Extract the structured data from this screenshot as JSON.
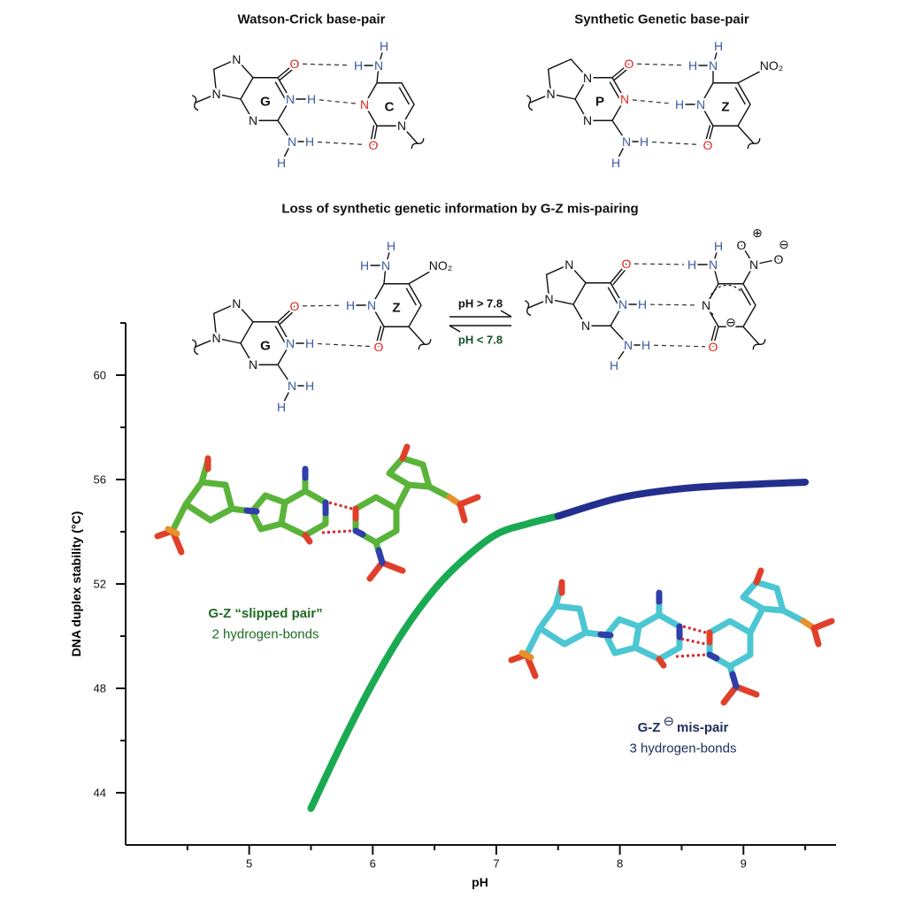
{
  "structures": [
    {
      "title": "Watson-Crick base-pair",
      "bases": [
        "G",
        "C"
      ],
      "atoms": [
        "N",
        "N",
        "O",
        "N",
        "H",
        "N",
        "N",
        "H",
        "H",
        "N",
        "N",
        "H",
        "H",
        "O",
        "N"
      ]
    },
    {
      "title": "Synthetic Genetic base-pair",
      "bases": [
        "P",
        "Z"
      ],
      "atoms": [
        "N",
        "N",
        "O",
        "N",
        "N",
        "N",
        "H",
        "H",
        "N",
        "H",
        "N",
        "H",
        "H",
        "O",
        "NO₂"
      ]
    },
    {
      "bases": [
        "G",
        "Z"
      ],
      "atoms": [
        "N",
        "N",
        "O",
        "N",
        "H",
        "N",
        "N",
        "H",
        "H",
        "N",
        "H",
        "N",
        "H",
        "H",
        "O",
        "NO₂"
      ]
    },
    {
      "atoms": [
        "N",
        "N",
        "O",
        "N",
        "H",
        "N",
        "N",
        "H",
        "H",
        "N",
        "N",
        "H",
        "H",
        "O",
        "N",
        "O",
        "O",
        "⊕",
        "⊖",
        "⊖"
      ]
    }
  ],
  "section_title": "Loss of synthetic genetic information by G-Z mis-pairing",
  "equilibrium": {
    "forward": "pH > 7.8",
    "reverse": "pH < 7.8"
  },
  "chart_data": {
    "type": "line",
    "x_label": "pH",
    "y_label": "DNA duplex stability (°C)",
    "xlim": [
      4,
      9.75
    ],
    "ylim": [
      42,
      62
    ],
    "xticks": [
      5,
      6,
      7,
      8,
      9
    ],
    "yticks": [
      44,
      48,
      52,
      56,
      60
    ],
    "xminor": [
      4.5,
      5.5,
      6.5,
      7.5,
      8.5,
      9.5
    ],
    "yminor": [
      46,
      50,
      54,
      58,
      62
    ],
    "series": [
      {
        "color": "#1aaa52",
        "x": [
          5.5,
          5.75,
          6,
          6.25,
          6.5,
          6.75,
          7,
          7.25,
          7.5
        ],
        "values": [
          43.4,
          45.9,
          48.2,
          50.2,
          51.8,
          53.0,
          53.9,
          54.3,
          54.6
        ]
      },
      {
        "color": "#232f8e",
        "x": [
          7.5,
          8,
          8.5,
          9,
          9.5
        ],
        "values": [
          54.6,
          55.3,
          55.65,
          55.8,
          55.9
        ]
      }
    ],
    "annotations": [
      {
        "text": [
          "G-Z “slipped pair”"
        ],
        "subtext": "2 hydrogen-bonds",
        "color": "#1f6b22"
      },
      {
        "text": [
          "G-Z",
          "⊖",
          "mis-pair"
        ],
        "subtext": "3 hydrogen-bonds",
        "color": "#1c2d5a"
      }
    ]
  }
}
